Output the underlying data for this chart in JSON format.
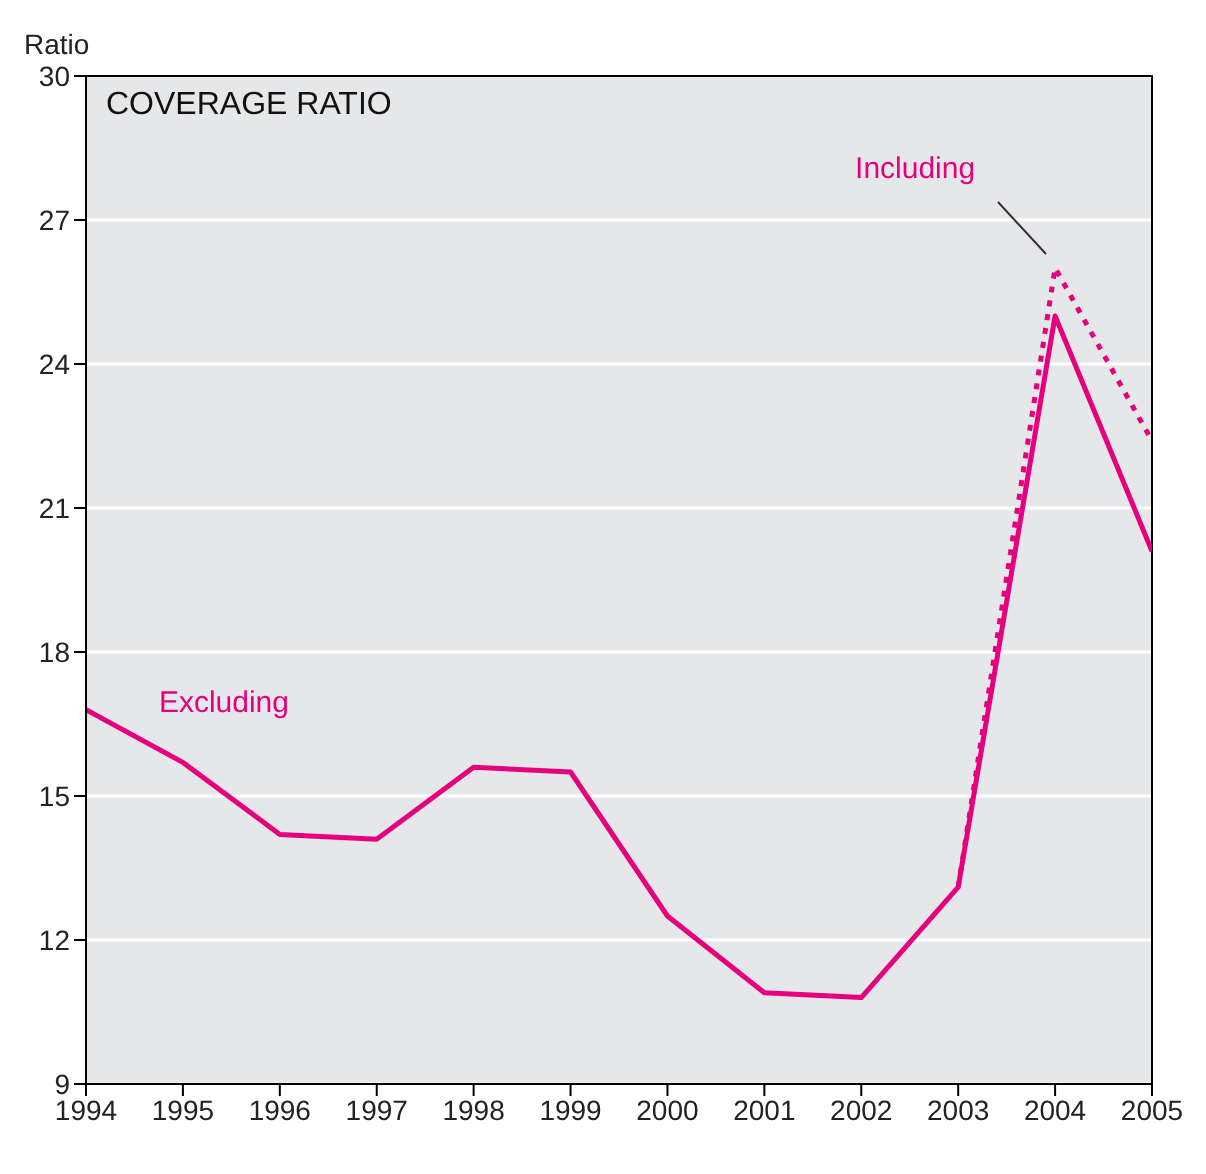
{
  "chart_data": {
    "type": "line",
    "title": "COVERAGE RATIO",
    "ylabel": "Ratio",
    "x": [
      1994,
      1995,
      1996,
      1997,
      1998,
      1999,
      2000,
      2001,
      2002,
      2003,
      2004,
      2005
    ],
    "series": [
      {
        "name": "Excluding",
        "color": "#e5007e",
        "line_style": "solid",
        "values": [
          16.8,
          15.7,
          14.2,
          14.1,
          15.6,
          15.5,
          12.5,
          10.9,
          10.8,
          13.1,
          25.0,
          20.1
        ]
      },
      {
        "name": "Including",
        "color": "#e5007e",
        "line_style": "dotted",
        "values": [
          null,
          null,
          null,
          null,
          null,
          null,
          null,
          null,
          null,
          13.1,
          26.0,
          22.4
        ]
      }
    ],
    "xlim": [
      1994,
      2005
    ],
    "xticks": [
      1994,
      1995,
      1996,
      1997,
      1998,
      1999,
      2000,
      2001,
      2002,
      2003,
      2004,
      2005
    ],
    "ylim": [
      9,
      30
    ],
    "yticks": [
      9,
      12,
      15,
      18,
      21,
      24,
      27,
      30
    ],
    "grid": "y",
    "legend": false,
    "marker": "none"
  }
}
